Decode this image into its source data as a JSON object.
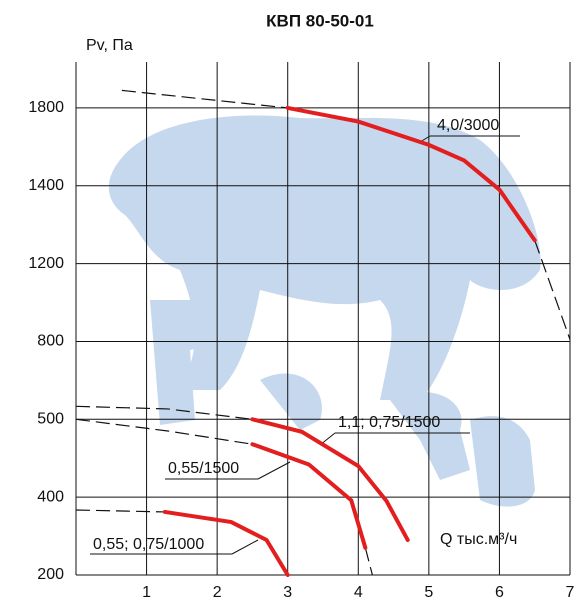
{
  "chart_data": {
    "type": "line",
    "title": "КВП 80-50-01",
    "y_label": "Pv, Па",
    "x_label": "Q тыс.м³/ч",
    "xlim": [
      0,
      7
    ],
    "xticks": [
      1,
      2,
      3,
      4,
      5,
      6,
      7
    ],
    "ylim": [
      200,
      2000
    ],
    "yticks": [
      200,
      400,
      500,
      800,
      1200,
      1400,
      1800
    ],
    "grid": true,
    "series": [
      {
        "name": "4,0/3000",
        "color": "#e31e1e",
        "x": [
          3,
          4,
          5,
          5.5,
          6,
          6.5
        ],
        "values": [
          1800,
          1730,
          1610,
          1530,
          1390,
          1260
        ]
      },
      {
        "name": "1,1; 0,75/1500",
        "color": "#e31e1e",
        "x": [
          2.5,
          3.2,
          4.0,
          4.4,
          4.7
        ],
        "values": [
          500,
          484,
          440,
          390,
          290
        ]
      },
      {
        "name": "0,55/1500",
        "color": "#e31e1e",
        "x": [
          2.5,
          3.3,
          3.9,
          4.1
        ],
        "values": [
          468,
          442,
          392,
          270
        ]
      },
      {
        "name": "0,55; 0,75/1000",
        "color": "#e31e1e",
        "x": [
          1.26,
          2.2,
          2.7,
          3.0
        ],
        "values": [
          362,
          336,
          290,
          200
        ]
      }
    ],
    "dashed_lines": [
      {
        "color": "#111111",
        "x": [
          0.65,
          3
        ],
        "values": [
          1890,
          1800
        ]
      },
      {
        "color": "#111111",
        "x": [
          6.5,
          7
        ],
        "values": [
          1260,
          810
        ]
      },
      {
        "color": "#111111",
        "x": [
          0,
          1.3,
          2.5
        ],
        "values": [
          550,
          540,
          500
        ]
      },
      {
        "color": "#111111",
        "x": [
          0,
          1.3,
          2.5
        ],
        "values": [
          500,
          485,
          468
        ]
      },
      {
        "color": "#111111",
        "x": [
          4.1,
          4.2
        ],
        "values": [
          270,
          200
        ]
      },
      {
        "color": "#111111",
        "x": [
          0,
          1.26
        ],
        "values": [
          367,
          362
        ]
      }
    ]
  }
}
